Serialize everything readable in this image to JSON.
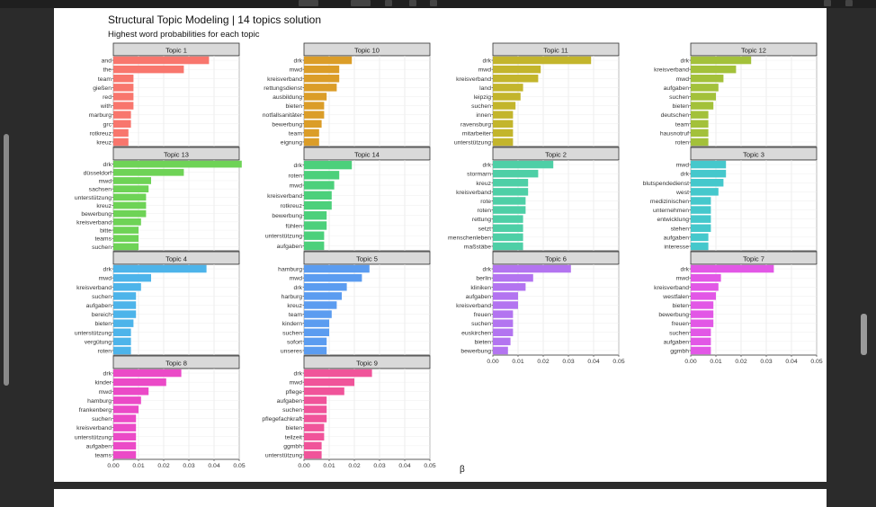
{
  "title": "Structural Topic Modeling | 14 topics solution",
  "subtitle": "Highest word probabilities for each topic",
  "x_axis_label": "β",
  "chart_data": {
    "type": "bar",
    "orientation": "horizontal",
    "title": "Structural Topic Modeling | 14 topics solution",
    "subtitle": "Highest word probabilities for each topic",
    "xlabel": "β",
    "xlim": [
      0,
      0.05
    ],
    "x_ticks": [
      "0.00",
      "0.01",
      "0.02",
      "0.03",
      "0.04",
      "0.05"
    ],
    "grid": true,
    "legend": "none",
    "panels": [
      {
        "name": "Topic 1",
        "color": "#F8766D",
        "terms": [
          "and",
          "the",
          "team",
          "gießen",
          "red",
          "with",
          "marburg",
          "grc",
          "rotkreuz",
          "kreuz"
        ],
        "values": [
          0.038,
          0.028,
          0.008,
          0.008,
          0.008,
          0.008,
          0.007,
          0.007,
          0.006,
          0.006
        ]
      },
      {
        "name": "Topic 10",
        "color": "#DB9D28",
        "terms": [
          "drk",
          "mwd",
          "kreisverband",
          "rettungsdienst",
          "ausbildung",
          "bieten",
          "notfallsanitäter",
          "bewerbung",
          "team",
          "eignung"
        ],
        "values": [
          0.019,
          0.014,
          0.014,
          0.013,
          0.009,
          0.008,
          0.008,
          0.007,
          0.006,
          0.006
        ]
      },
      {
        "name": "Topic 11",
        "color": "#C3B52C",
        "terms": [
          "drk",
          "mwd",
          "kreisverband",
          "land",
          "leipzig",
          "suchen",
          "innen",
          "ravensburg",
          "mitarbeiter",
          "unterstützung"
        ],
        "values": [
          0.039,
          0.019,
          0.018,
          0.012,
          0.011,
          0.009,
          0.008,
          0.008,
          0.008,
          0.008
        ]
      },
      {
        "name": "Topic 12",
        "color": "#A3C13A",
        "terms": [
          "drk",
          "kreisverband",
          "mwd",
          "aufgaben",
          "suchen",
          "bieten",
          "deutschen",
          "team",
          "hausnotruf",
          "roten"
        ],
        "values": [
          0.024,
          0.018,
          0.013,
          0.011,
          0.01,
          0.009,
          0.007,
          0.007,
          0.007,
          0.007
        ]
      },
      {
        "name": "Topic 13",
        "color": "#6ED356",
        "terms": [
          "drk",
          "düsseldorf",
          "mwd",
          "sachsen",
          "unterstützung",
          "kreuz",
          "bewerbung",
          "kreisverband",
          "bitte",
          "teams",
          "suchen"
        ],
        "values": [
          0.051,
          0.028,
          0.015,
          0.014,
          0.013,
          0.013,
          0.013,
          0.011,
          0.01,
          0.01,
          0.01
        ]
      },
      {
        "name": "Topic 14",
        "color": "#4CD07B",
        "terms": [
          "drk",
          "roten",
          "mwd",
          "kreisverband",
          "rotkreuz",
          "bewerbung",
          "fühlen",
          "unterstützung",
          "aufgaben"
        ],
        "values": [
          0.019,
          0.014,
          0.012,
          0.011,
          0.011,
          0.009,
          0.009,
          0.008,
          0.008
        ]
      },
      {
        "name": "Topic 2",
        "color": "#4ECFA6",
        "terms": [
          "drk",
          "stormarn",
          "kreuz",
          "kreisverband",
          "rote",
          "roten",
          "rettung",
          "setzt",
          "menschenleben",
          "maßstäbe"
        ],
        "values": [
          0.024,
          0.018,
          0.014,
          0.014,
          0.013,
          0.013,
          0.012,
          0.012,
          0.012,
          0.012
        ]
      },
      {
        "name": "Topic 3",
        "color": "#45C8CC",
        "terms": [
          "mwd",
          "drk",
          "blutspendedienst",
          "west",
          "medizinischen",
          "unternehmen",
          "entwicklung",
          "stehen",
          "aufgaben",
          "interesse"
        ],
        "values": [
          0.014,
          0.014,
          0.013,
          0.011,
          0.008,
          0.008,
          0.008,
          0.008,
          0.007,
          0.007
        ]
      },
      {
        "name": "Topic 4",
        "color": "#4DB4EA",
        "terms": [
          "drk",
          "mwd",
          "kreisverband",
          "suchen",
          "aufgaben",
          "bereich",
          "bieten",
          "unterstützung",
          "vergütung",
          "roten"
        ],
        "values": [
          0.037,
          0.015,
          0.011,
          0.009,
          0.009,
          0.009,
          0.008,
          0.007,
          0.007,
          0.007
        ]
      },
      {
        "name": "Topic 5",
        "color": "#5B9CF0",
        "terms": [
          "hamburg",
          "mwd",
          "drk",
          "harburg",
          "kreuz",
          "team",
          "kindern",
          "suchen",
          "sofort",
          "unseres"
        ],
        "values": [
          0.026,
          0.023,
          0.017,
          0.015,
          0.013,
          0.011,
          0.01,
          0.01,
          0.009,
          0.009
        ]
      },
      {
        "name": "Topic 6",
        "color": "#B374F0",
        "terms": [
          "drk",
          "berlin",
          "kliniken",
          "aufgaben",
          "kreisverband",
          "freuen",
          "suchen",
          "euskirchen",
          "bieten",
          "bewerbung"
        ],
        "values": [
          0.031,
          0.016,
          0.013,
          0.01,
          0.01,
          0.008,
          0.008,
          0.008,
          0.007,
          0.006
        ]
      },
      {
        "name": "Topic 7",
        "color": "#E257E6",
        "terms": [
          "drk",
          "mwd",
          "kreisverband",
          "westfalen",
          "bieten",
          "bewerbung",
          "freuen",
          "suchen",
          "aufgaben",
          "ggmbh"
        ],
        "values": [
          0.033,
          0.012,
          0.011,
          0.01,
          0.009,
          0.009,
          0.009,
          0.008,
          0.008,
          0.008
        ]
      },
      {
        "name": "Topic 8",
        "color": "#EB4AC7",
        "terms": [
          "drk",
          "kinder",
          "mwd",
          "hamburg",
          "frankenberg",
          "suchen",
          "kreisverband",
          "unterstützung",
          "aufgaben",
          "teams"
        ],
        "values": [
          0.027,
          0.021,
          0.014,
          0.011,
          0.01,
          0.009,
          0.009,
          0.009,
          0.009,
          0.009
        ]
      },
      {
        "name": "Topic 9",
        "color": "#F0549A",
        "terms": [
          "drk",
          "mwd",
          "pflege",
          "aufgaben",
          "suchen",
          "pflegefachkraft",
          "bieten",
          "teilzeit",
          "ggmbh",
          "unterstützung"
        ],
        "values": [
          0.027,
          0.02,
          0.016,
          0.009,
          0.009,
          0.009,
          0.008,
          0.008,
          0.007,
          0.007
        ]
      }
    ]
  }
}
